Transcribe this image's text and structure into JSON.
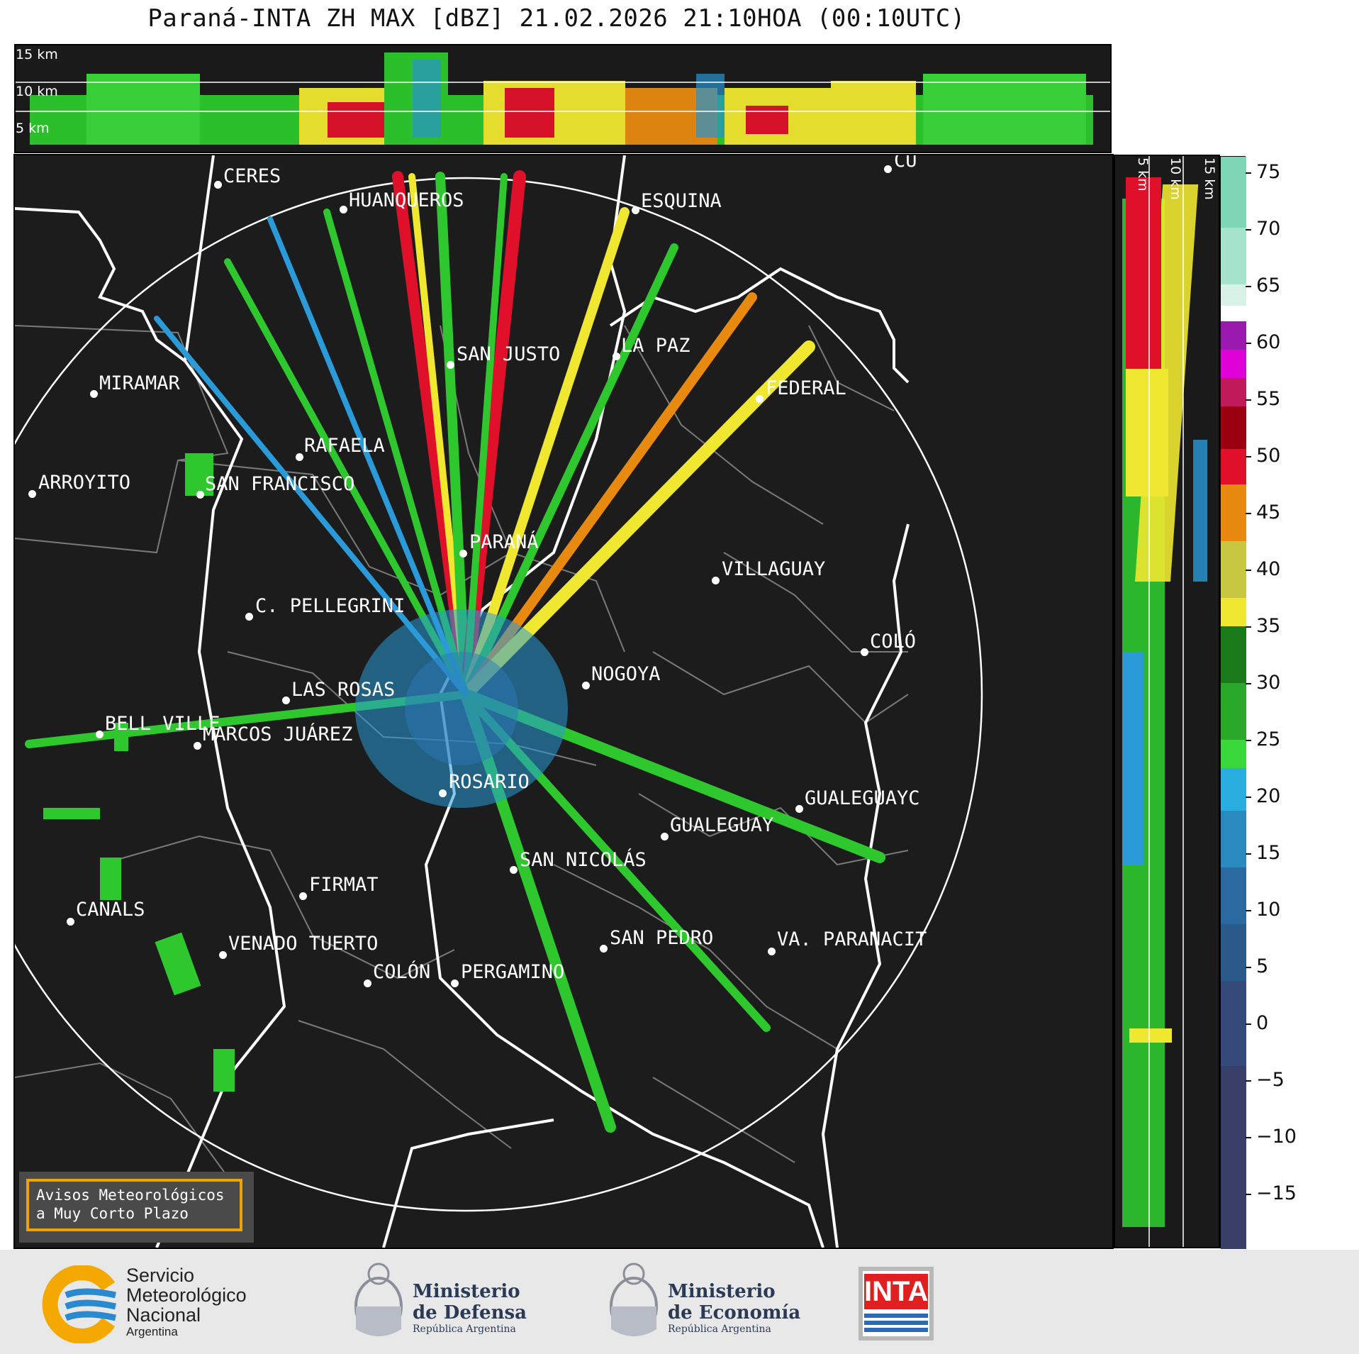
{
  "title": "Paraná-INTA ZH MAX [dBZ] 21.02.2026 21:10HOA (00:10UTC)",
  "top_panel": {
    "altitude_labels": [
      "15 km",
      "10 km",
      "5 km"
    ]
  },
  "side_panel": {
    "altitude_labels": [
      "5 km",
      "10 km",
      "15 km"
    ]
  },
  "colorbar": {
    "ticks": [
      "75",
      "70",
      "65",
      "60",
      "55",
      "50",
      "45",
      "40",
      "35",
      "30",
      "25",
      "20",
      "15",
      "10",
      "5",
      "0",
      "−5",
      "−10",
      "−15"
    ],
    "colors": {
      "high": "#7fd6b4",
      "white": "#ffffff",
      "magenta": "#c800c8",
      "red": "#e0102a",
      "orange": "#e88a10",
      "yellow": "#f0e830",
      "green": "#2ec82e",
      "blue": "#2a9ad8",
      "navy": "#3a3f6a"
    }
  },
  "cities": [
    {
      "name": "CERES"
    },
    {
      "name": "HUANQUEROS"
    },
    {
      "name": "ESQUINA"
    },
    {
      "name": "CU"
    },
    {
      "name": "SAN JUSTO"
    },
    {
      "name": "LA PAZ"
    },
    {
      "name": "MIRAMAR"
    },
    {
      "name": "FEDERAL"
    },
    {
      "name": "RAFAELA"
    },
    {
      "name": "ARROYITO"
    },
    {
      "name": "SAN FRANCISCO"
    },
    {
      "name": "PARANÁ"
    },
    {
      "name": "VILLAGUAY"
    },
    {
      "name": "C. PELLEGRINI"
    },
    {
      "name": "COLÓ"
    },
    {
      "name": "NOGOYA"
    },
    {
      "name": "LAS ROSAS"
    },
    {
      "name": "BELL VILLE"
    },
    {
      "name": "MARCOS JUÁREZ"
    },
    {
      "name": "ROSARIO"
    },
    {
      "name": "GUALEGUAYC"
    },
    {
      "name": "GUALEGUAY"
    },
    {
      "name": "SAN NICOLÁS"
    },
    {
      "name": "FIRMAT"
    },
    {
      "name": "CANALS"
    },
    {
      "name": "SAN PEDRO"
    },
    {
      "name": "VENADO TUERTO"
    },
    {
      "name": "VA. PARANACIT"
    },
    {
      "name": "COLÓN"
    },
    {
      "name": "PERGAMINO"
    }
  ],
  "notice": {
    "line1": "Avisos Meteorológicos",
    "line2": "a Muy Corto Plazo"
  },
  "logos": {
    "smn": {
      "line1": "Servicio",
      "line2": "Meteorológico",
      "line3": "Nacional",
      "line4": "Argentina"
    },
    "defensa": {
      "line1": "Ministerio",
      "line2": "de Defensa",
      "line3": "República Argentina"
    },
    "economia": {
      "line1": "Ministerio",
      "line2": "de Economía",
      "line3": "República Argentina"
    },
    "inta": {
      "label": "INTA"
    }
  }
}
